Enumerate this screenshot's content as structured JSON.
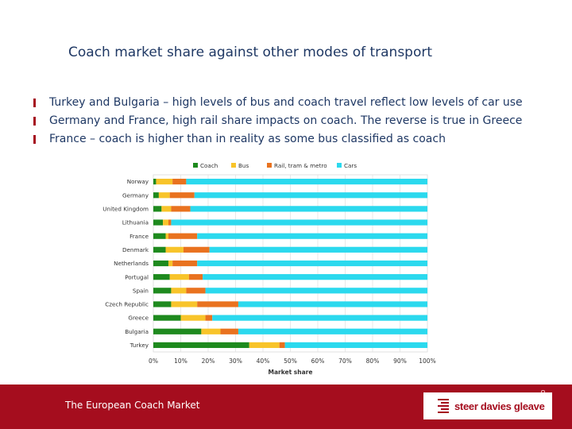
{
  "title": "Coach market share against other modes of transport",
  "bullets": [
    "Turkey and Bulgaria – high levels of bus and coach travel reflect low levels of car use",
    "Germany and France, high rail share impacts on coach.  The reverse is true in Greece",
    "France – coach is higher than in reality as some bus classified as coach"
  ],
  "footer": {
    "title": "The European Coach Market",
    "page_number": "8",
    "logo_text": "steer davies gleave"
  },
  "colors": {
    "text": "#1f3864",
    "accent": "#a50d1e",
    "coach": "#1e8a1e",
    "bus": "#f8c42a",
    "rail": "#e9721f",
    "cars": "#2bd9ee"
  },
  "chart_data": {
    "type": "bar",
    "orientation": "horizontal",
    "stacked": true,
    "title": "",
    "xlabel": "Market share",
    "ylabel": "",
    "xlim": [
      0,
      100
    ],
    "xticks": [
      "0%",
      "10%",
      "20%",
      "30%",
      "40%",
      "50%",
      "60%",
      "70%",
      "80%",
      "90%",
      "100%"
    ],
    "legend_position": "top",
    "grid": true,
    "categories": [
      "Norway",
      "Germany",
      "United Kingdom",
      "Lithuania",
      "France",
      "Denmark",
      "Netherlands",
      "Portugal",
      "Spain",
      "Czech Republic",
      "Greece",
      "Bulgaria",
      "Turkey"
    ],
    "series": [
      {
        "name": "Coach",
        "color": "#1e8a1e",
        "values": [
          1,
          2,
          3,
          3.5,
          4.5,
          4.5,
          5.5,
          6,
          6.5,
          6.5,
          10,
          17.5,
          35
        ]
      },
      {
        "name": "Bus",
        "color": "#f8c42a",
        "values": [
          6,
          4,
          3.5,
          2,
          1,
          6.5,
          1.5,
          7,
          5.5,
          9.5,
          9,
          7,
          11
        ]
      },
      {
        "name": "Rail, tram & metro",
        "color": "#e9721f",
        "values": [
          5,
          9,
          7,
          1,
          10.5,
          9.5,
          9,
          5,
          7,
          15,
          2.5,
          6.5,
          2
        ]
      },
      {
        "name": "Cars",
        "color": "#2bd9ee",
        "values": [
          88,
          85,
          86.5,
          93.5,
          84,
          79.5,
          84,
          82,
          81,
          69,
          78.5,
          69,
          52
        ]
      }
    ]
  }
}
